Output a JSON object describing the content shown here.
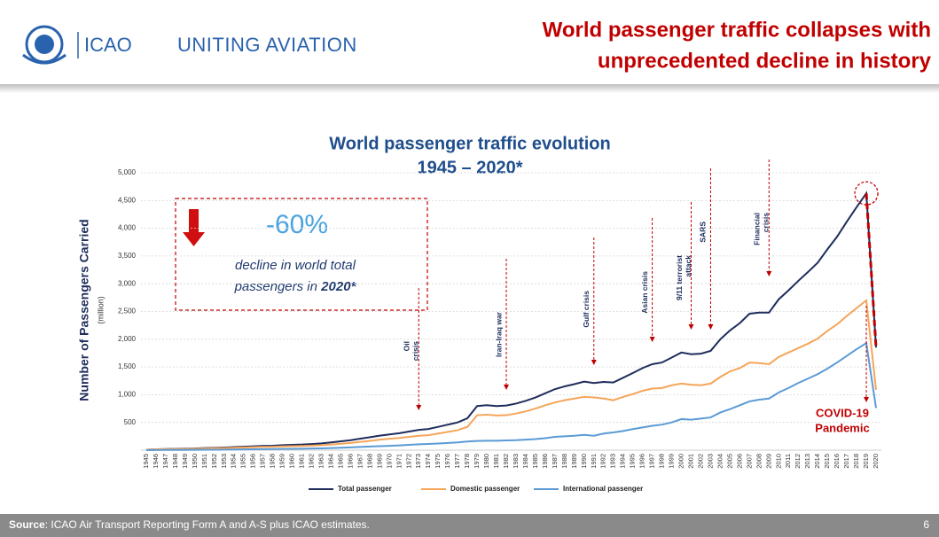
{
  "header": {
    "logo_text": "ICAO",
    "tagline": "UNITING AVIATION",
    "headline": [
      "World passenger traffic collapses with",
      "unprecedented decline in history"
    ]
  },
  "chart_data": {
    "type": "line",
    "title": [
      "World passenger traffic evolution",
      "1945 – 2020*"
    ],
    "y_label": "Number of Passengers Carried",
    "y_unit": "(million)",
    "categories": [
      "1945",
      "1946",
      "1947",
      "1948",
      "1949",
      "1950",
      "1951",
      "1952",
      "1953",
      "1954",
      "1955",
      "1956",
      "1957",
      "1958",
      "1959",
      "1960",
      "1961",
      "1962",
      "1963",
      "1964",
      "1965",
      "1966",
      "1967",
      "1968",
      "1969",
      "1970",
      "1971",
      "1972",
      "1973",
      "1974",
      "1975",
      "1976",
      "1977",
      "1978",
      "1979",
      "1980",
      "1981",
      "1982",
      "1983",
      "1984",
      "1985",
      "1986",
      "1987",
      "1988",
      "1989",
      "1990",
      "1991",
      "1992",
      "1993",
      "1994",
      "1995",
      "1996",
      "1997",
      "1998",
      "1999",
      "2000",
      "2001",
      "2002",
      "2003",
      "2004",
      "2005",
      "2006",
      "2007",
      "2008",
      "2009",
      "2010",
      "2011",
      "2012",
      "2013",
      "2014",
      "2015",
      "2016",
      "2017",
      "2018",
      "2019",
      "2020"
    ],
    "series": [
      {
        "name": "Total passenger",
        "color": "#1f2d5c",
        "values": [
          9,
          17,
          20,
          23,
          26,
          30,
          37,
          42,
          48,
          55,
          62,
          69,
          78,
          80,
          90,
          96,
          101,
          110,
          122,
          140,
          159,
          180,
          208,
          233,
          262,
          283,
          305,
          335,
          365,
          382,
          420,
          460,
          500,
          575,
          795,
          810,
          795,
          805,
          840,
          890,
          950,
          1025,
          1100,
          1150,
          1190,
          1235,
          1210,
          1230,
          1220,
          1305,
          1390,
          1480,
          1550,
          1580,
          1670,
          1760,
          1730,
          1740,
          1790,
          2000,
          2160,
          2290,
          2460,
          2480,
          2480,
          2720,
          2880,
          3050,
          3210,
          3380,
          3620,
          3850,
          4120,
          4380,
          4630,
          1850
        ]
      },
      {
        "name": "Domestic passenger",
        "color": "#f5a55a",
        "values": [
          8,
          15,
          17,
          19,
          21,
          24,
          30,
          34,
          38,
          43,
          48,
          53,
          60,
          61,
          68,
          72,
          75,
          81,
          90,
          102,
          115,
          130,
          150,
          168,
          190,
          205,
          220,
          240,
          260,
          270,
          300,
          330,
          360,
          420,
          630,
          640,
          625,
          630,
          660,
          700,
          750,
          810,
          860,
          900,
          930,
          960,
          950,
          930,
          900,
          960,
          1010,
          1070,
          1110,
          1120,
          1170,
          1200,
          1180,
          1170,
          1200,
          1320,
          1420,
          1480,
          1580,
          1570,
          1550,
          1680,
          1760,
          1840,
          1920,
          2010,
          2150,
          2270,
          2420,
          2560,
          2700,
          1090
        ]
      },
      {
        "name": "International passenger",
        "color": "#5b9bd5",
        "values": [
          1,
          2,
          3,
          4,
          5,
          6,
          7,
          8,
          10,
          12,
          14,
          16,
          18,
          19,
          22,
          24,
          26,
          29,
          32,
          38,
          44,
          50,
          58,
          65,
          72,
          78,
          85,
          95,
          105,
          112,
          120,
          130,
          140,
          155,
          165,
          170,
          170,
          175,
          180,
          190,
          200,
          215,
          240,
          250,
          260,
          275,
          260,
          300,
          320,
          345,
          380,
          410,
          440,
          460,
          500,
          560,
          550,
          570,
          590,
          680,
          740,
          810,
          880,
          910,
          930,
          1040,
          1120,
          1210,
          1290,
          1370,
          1470,
          1580,
          1700,
          1820,
          1930,
          760
        ]
      }
    ],
    "ylim": [
      0,
      5000
    ],
    "yticks": [
      500,
      {
        "value": 1000,
        "label": "1,000"
      },
      {
        "value": 1500,
        "label": "1,500"
      },
      {
        "value": 2000,
        "label": "2,000"
      },
      {
        "value": 2500,
        "label": "2,500"
      },
      {
        "value": 3000,
        "label": "3,000"
      },
      {
        "value": 3500,
        "label": "3,500"
      },
      {
        "value": 4000,
        "label": "4,000"
      },
      {
        "value": 4500,
        "label": "4,500"
      },
      {
        "value": 5000,
        "label": "5,000"
      }
    ],
    "grid": true,
    "callout": {
      "value_label": "-60%",
      "lines": [
        "decline in world total",
        "passengers in"
      ],
      "emphasis": "2020*"
    },
    "events": [
      {
        "lines": [
          "Oil",
          "crisis"
        ],
        "x": 1973
      },
      {
        "lines": [
          "Iran-Iraq war"
        ],
        "x": 1982
      },
      {
        "lines": [
          "Gulf crisis"
        ],
        "x": 1991
      },
      {
        "lines": [
          "Asian crisis"
        ],
        "x": 1997
      },
      {
        "lines": [
          "9/11 terrorist",
          "attack"
        ],
        "x": 2001
      },
      {
        "lines": [
          "SARS"
        ],
        "x": 2003
      },
      {
        "lines": [
          "Financial",
          "crisis"
        ],
        "x": 2009
      }
    ],
    "covid": {
      "lines": [
        "COVID-19",
        "Pandemic"
      ],
      "x": 2019
    }
  },
  "footer": {
    "source_label": "Source",
    "source_text": ": ICAO Air Transport Reporting Form A and A-S plus ICAO estimates.",
    "page": "6"
  }
}
